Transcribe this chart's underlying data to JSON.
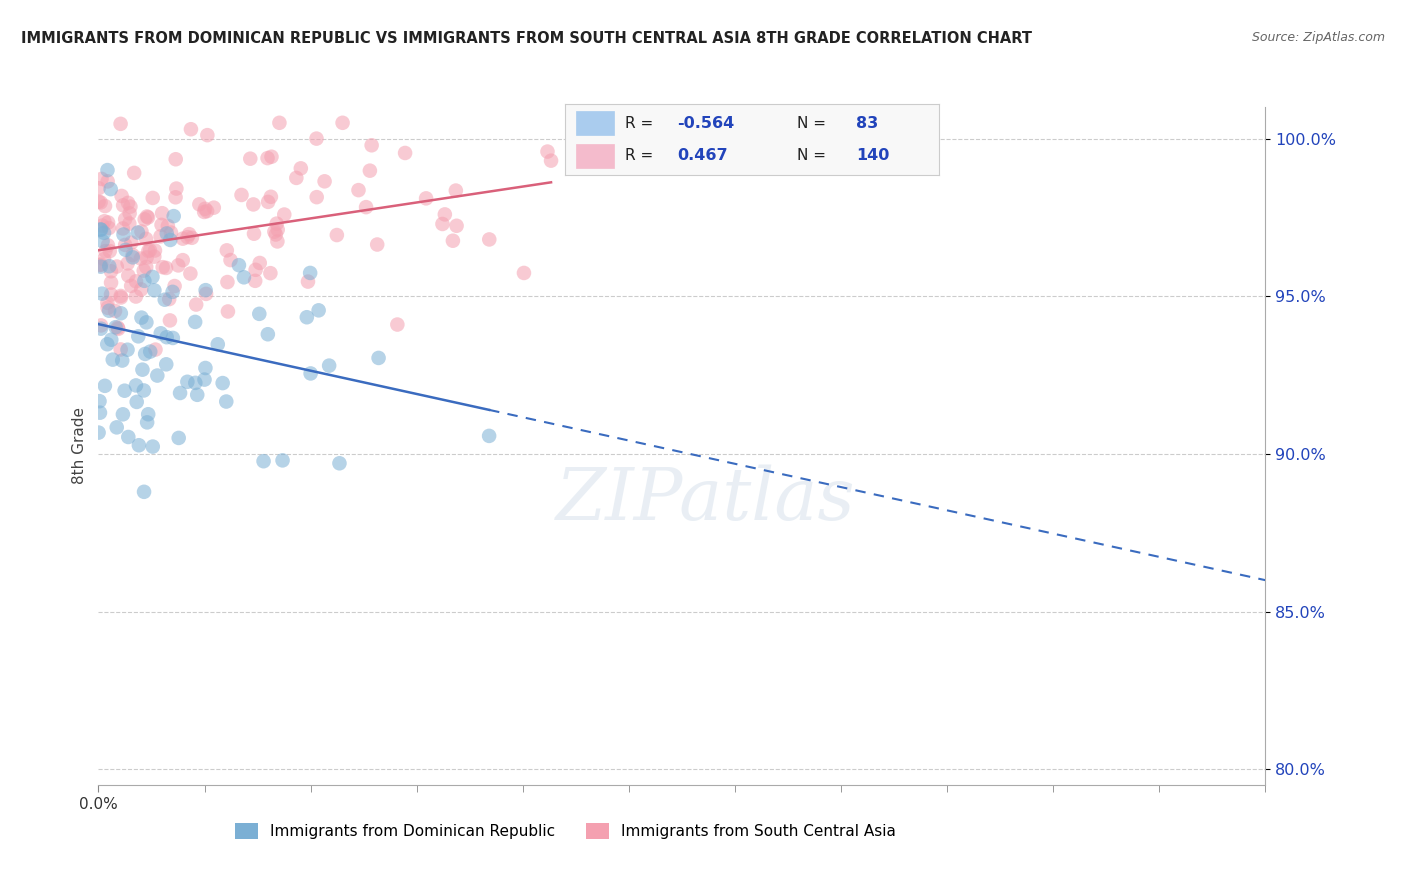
{
  "title": "IMMIGRANTS FROM DOMINICAN REPUBLIC VS IMMIGRANTS FROM SOUTH CENTRAL ASIA 8TH GRADE CORRELATION CHART",
  "source": "Source: ZipAtlas.com",
  "ylabel": "8th Grade",
  "blue_R": -0.564,
  "blue_N": 83,
  "pink_R": 0.467,
  "pink_N": 140,
  "blue_color": "#7BAFD4",
  "pink_color": "#F4A0B0",
  "blue_line_color": "#3A6BBF",
  "pink_line_color": "#D9607A",
  "title_color": "#222222",
  "source_color": "#666666",
  "r_value_color": "#2244BB",
  "xmin": 0.0,
  "xmax": 0.35,
  "ymin": 0.795,
  "ymax": 1.01,
  "yticks": [
    0.8,
    0.85,
    0.9,
    0.95,
    1.0
  ],
  "ytick_labels": [
    "80.0%",
    "85.0%",
    "90.0%",
    "95.0%",
    "100.0%"
  ],
  "blue_seed": 12,
  "pink_seed": 5,
  "watermark_text": "ZIPatlas",
  "legend_label_blue": "Immigrants from Dominican Republic",
  "legend_label_pink": "Immigrants from South Central Asia"
}
